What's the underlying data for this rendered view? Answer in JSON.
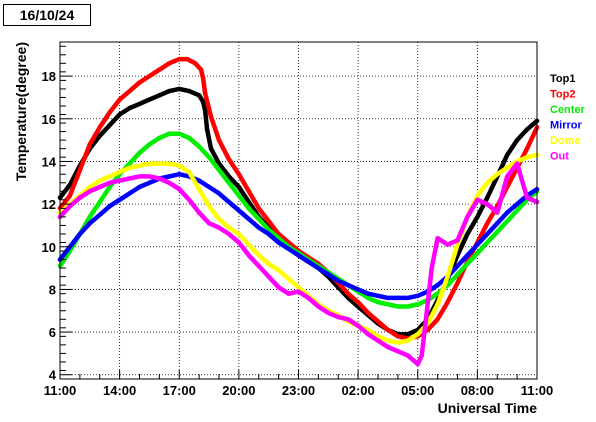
{
  "header": {
    "date_label": "16/10/24"
  },
  "chart_data": {
    "type": "scatter",
    "title": "16/10/24",
    "xlabel": "Universal Time",
    "ylabel": "Temperature(degree)",
    "xlim": [
      0,
      24
    ],
    "ylim": [
      3.8,
      19.6
    ],
    "grid": true,
    "legend_position": "right",
    "xticks": [
      {
        "x": 0,
        "label": "11:00"
      },
      {
        "x": 3,
        "label": "14:00"
      },
      {
        "x": 6,
        "label": "17:00"
      },
      {
        "x": 9,
        "label": "20:00"
      },
      {
        "x": 12,
        "label": "23:00"
      },
      {
        "x": 15,
        "label": "02:00"
      },
      {
        "x": 18,
        "label": "05:00"
      },
      {
        "x": 21,
        "label": "08:00"
      },
      {
        "x": 24,
        "label": "11:00"
      }
    ],
    "yticks": [
      4,
      6,
      8,
      10,
      12,
      14,
      16,
      18
    ],
    "series": [
      {
        "name": "Top1",
        "color": "#000000",
        "x": [
          0,
          0.5,
          1,
          1.5,
          2,
          2.5,
          3,
          3.5,
          4,
          4.5,
          5,
          5.5,
          6,
          6.5,
          7,
          7.2,
          7.3,
          7.4,
          7.6,
          8,
          8.5,
          9,
          9.5,
          10,
          10.5,
          11,
          11.5,
          12,
          12.5,
          13,
          13.5,
          14,
          14.5,
          15,
          15.5,
          16,
          16.5,
          17,
          17.5,
          18,
          18.5,
          19,
          19.5,
          20,
          20.5,
          21,
          21.5,
          22,
          22.5,
          23,
          23.5,
          24
        ],
        "y": [
          12.3,
          12.9,
          13.8,
          14.6,
          15.2,
          15.7,
          16.2,
          16.5,
          16.7,
          16.9,
          17.1,
          17.3,
          17.4,
          17.3,
          17.1,
          16.8,
          16.4,
          15.5,
          14.6,
          13.9,
          13.3,
          12.8,
          12.1,
          11.4,
          10.9,
          10.4,
          10,
          9.6,
          9.3,
          9,
          8.6,
          8.1,
          7.6,
          7.2,
          6.8,
          6.4,
          6.1,
          5.9,
          5.9,
          6.1,
          6.6,
          7.5,
          8.5,
          9.6,
          10.6,
          11.4,
          12.3,
          13.3,
          14.3,
          15,
          15.5,
          15.9
        ]
      },
      {
        "name": "Top2",
        "color": "#ff0000",
        "x": [
          0,
          0.5,
          1,
          1.5,
          2,
          2.5,
          3,
          3.5,
          4,
          4.5,
          5,
          5.5,
          6,
          6.4,
          6.8,
          7.1,
          7.2,
          7.3,
          7.6,
          8,
          8.5,
          9,
          9.5,
          10,
          10.5,
          11,
          11.5,
          12,
          12.5,
          13,
          13.5,
          14,
          14.5,
          15,
          15.5,
          16,
          16.5,
          17,
          17.5,
          18,
          18.5,
          19,
          19.5,
          20,
          20.5,
          21,
          21.5,
          22,
          22.5,
          23,
          23.5,
          24
        ],
        "y": [
          11.8,
          12.4,
          13.6,
          14.8,
          15.6,
          16.3,
          16.9,
          17.3,
          17.7,
          18,
          18.3,
          18.6,
          18.8,
          18.8,
          18.6,
          18.3,
          17.9,
          17.2,
          16.1,
          15,
          14.1,
          13.4,
          12.6,
          11.8,
          11.2,
          10.6,
          10.2,
          9.8,
          9.5,
          9.2,
          8.8,
          8.3,
          7.8,
          7.4,
          6.9,
          6.5,
          6.1,
          5.8,
          5.7,
          5.8,
          6.1,
          6.6,
          7.4,
          8.3,
          9.3,
          10.2,
          11.1,
          11.9,
          12.8,
          13.7,
          14.6,
          15.6
        ]
      },
      {
        "name": "Center",
        "color": "#00ee00",
        "x": [
          0,
          0.5,
          1,
          1.5,
          2,
          2.5,
          3,
          3.5,
          4,
          4.5,
          5,
          5.5,
          6,
          6.5,
          7,
          7.5,
          8,
          8.5,
          9,
          9.5,
          10,
          10.5,
          11,
          11.5,
          12,
          12.5,
          13,
          13.5,
          14,
          14.5,
          15,
          15.5,
          16,
          16.5,
          17,
          17.5,
          18,
          18.5,
          19,
          19.5,
          20,
          20.5,
          21,
          21.5,
          22,
          22.5,
          23,
          23.5,
          24
        ],
        "y": [
          9.1,
          9.8,
          10.6,
          11.4,
          12.1,
          12.8,
          13.4,
          13.9,
          14.4,
          14.8,
          15.1,
          15.3,
          15.3,
          15.1,
          14.7,
          14.2,
          13.6,
          13,
          12.4,
          11.8,
          11.3,
          10.8,
          10.4,
          10,
          9.7,
          9.4,
          9.1,
          8.8,
          8.5,
          8.2,
          7.9,
          7.6,
          7.4,
          7.3,
          7.2,
          7.2,
          7.3,
          7.5,
          7.8,
          8.2,
          8.7,
          9.2,
          9.7,
          10.2,
          10.7,
          11.2,
          11.7,
          12.2,
          12.6
        ]
      },
      {
        "name": "Mirror",
        "color": "#0000ff",
        "x": [
          0,
          0.5,
          1,
          1.5,
          2,
          2.5,
          3,
          3.5,
          4,
          4.5,
          5,
          5.5,
          6,
          6.5,
          7,
          7.5,
          8,
          8.5,
          9,
          9.5,
          10,
          10.5,
          11,
          11.5,
          12,
          12.5,
          13,
          13.5,
          14,
          14.5,
          15,
          15.5,
          16,
          16.5,
          17,
          17.5,
          18,
          18.5,
          19,
          19.5,
          20,
          20.5,
          21,
          21.5,
          22,
          22.5,
          23,
          23.5,
          24
        ],
        "y": [
          9.4,
          10,
          10.6,
          11.1,
          11.5,
          11.9,
          12.2,
          12.5,
          12.8,
          13,
          13.2,
          13.3,
          13.4,
          13.3,
          13.1,
          12.8,
          12.5,
          12.1,
          11.7,
          11.3,
          10.9,
          10.6,
          10.2,
          9.9,
          9.6,
          9.3,
          9,
          8.7,
          8.4,
          8.2,
          8,
          7.8,
          7.7,
          7.6,
          7.6,
          7.6,
          7.7,
          7.9,
          8.2,
          8.6,
          9.1,
          9.6,
          10.1,
          10.6,
          11.1,
          11.6,
          12,
          12.4,
          12.7
        ]
      },
      {
        "name": "Dome",
        "color": "#ffff00",
        "x": [
          0,
          0.5,
          1,
          1.5,
          2,
          2.5,
          3,
          3.5,
          4,
          4.5,
          5,
          5.5,
          6,
          6.5,
          7,
          7.5,
          8,
          8.5,
          9,
          9.5,
          10,
          10.5,
          11,
          11.5,
          12,
          12.5,
          13,
          13.5,
          14,
          14.5,
          15,
          15.5,
          16,
          16.5,
          17,
          17.5,
          18,
          18.5,
          19,
          19.5,
          20,
          20.5,
          21,
          21.5,
          22,
          22.5,
          23,
          23.5,
          24
        ],
        "y": [
          11.6,
          12,
          12.4,
          12.8,
          13.1,
          13.3,
          13.5,
          13.7,
          13.8,
          13.9,
          13.9,
          13.9,
          13.8,
          13.5,
          12.7,
          11.9,
          11.3,
          10.9,
          10.6,
          10.1,
          9.6,
          9.2,
          8.9,
          8.5,
          8.1,
          7.7,
          7.3,
          7,
          6.8,
          6.5,
          6.3,
          6.1,
          5.8,
          5.6,
          5.5,
          5.6,
          5.9,
          6.4,
          7.3,
          8.6,
          10.1,
          11.4,
          12.4,
          13,
          13.4,
          13.7,
          14,
          14.2,
          14.3
        ]
      },
      {
        "name": "Out",
        "color": "#ff00ff",
        "x": [
          0,
          0.5,
          1,
          1.5,
          2,
          2.5,
          3,
          3.5,
          4,
          4.5,
          5,
          5.5,
          6,
          6.5,
          7,
          7.5,
          8,
          8.5,
          9,
          9.5,
          10,
          10.5,
          11,
          11.5,
          12,
          12.5,
          13,
          13.5,
          14,
          14.5,
          15,
          15.5,
          16,
          16.5,
          17,
          17.5,
          18,
          18.2,
          18.4,
          18.7,
          19,
          19.5,
          20,
          20.5,
          21,
          21.5,
          22,
          22.5,
          23,
          23.5,
          24
        ],
        "y": [
          11.4,
          11.9,
          12.3,
          12.6,
          12.8,
          13,
          13.1,
          13.2,
          13.3,
          13.3,
          13.2,
          13,
          12.7,
          12.2,
          11.6,
          11.1,
          10.9,
          10.6,
          10.2,
          9.6,
          9.1,
          8.6,
          8.1,
          7.8,
          7.9,
          7.6,
          7.2,
          6.9,
          6.7,
          6.6,
          6.3,
          5.9,
          5.6,
          5.3,
          5.1,
          4.9,
          4.5,
          4.9,
          6.5,
          9,
          10.4,
          10.1,
          10.3,
          11.4,
          12.2,
          12,
          11.6,
          13.3,
          13.9,
          12.3,
          12.1
        ]
      }
    ]
  }
}
